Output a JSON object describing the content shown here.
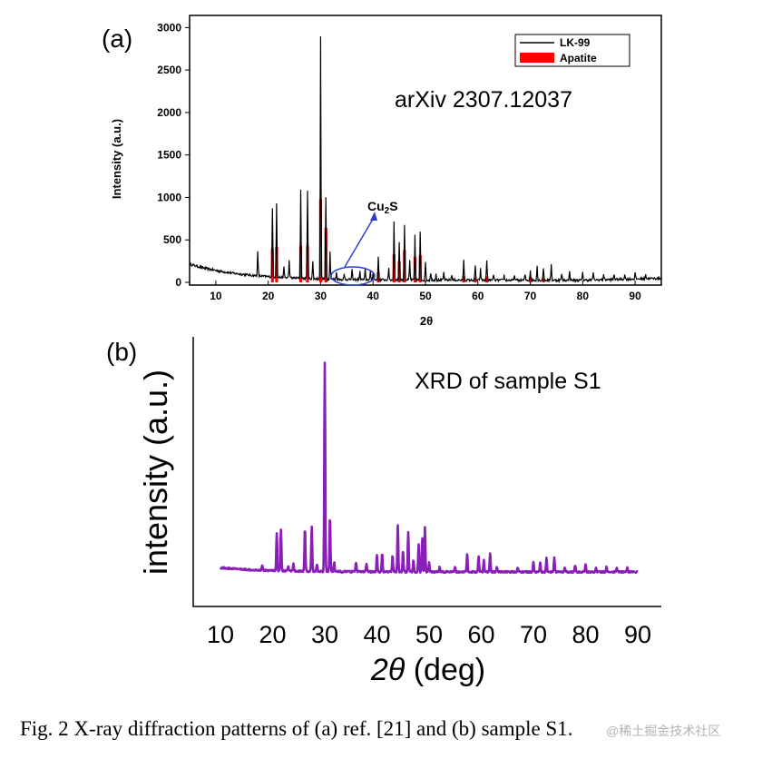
{
  "caption": "Fig. 2 X-ray diffraction patterns of (a) ref. [21] and (b) sample S1.",
  "watermark": "@稀土掘金技术社区",
  "chart_data": [
    {
      "panel": "(a)",
      "type": "line",
      "title": "arXiv 2307.12037",
      "xlabel": "2θ",
      "ylabel": "Intensity (a.u.)",
      "xlim": [
        5,
        95
      ],
      "ylim": [
        0,
        3100
      ],
      "xticks": [
        10,
        20,
        30,
        40,
        50,
        60,
        70,
        80,
        90
      ],
      "yticks": [
        0,
        500,
        1000,
        1500,
        2000,
        2500,
        3000
      ],
      "legend": {
        "position": "top-right",
        "entries": [
          "LK-99",
          "Apatite"
        ]
      },
      "annotation": {
        "text": "Cu",
        "sub": "2",
        "tail": "S",
        "region": [
          32,
          42
        ]
      },
      "series": [
        {
          "name": "LK-99",
          "color": "#000000",
          "peaks": [
            [
              18,
              280
            ],
            [
              20.8,
              820
            ],
            [
              21.6,
              880
            ],
            [
              23,
              120
            ],
            [
              24,
              200
            ],
            [
              26.2,
              1050
            ],
            [
              27.5,
              1050
            ],
            [
              28.5,
              200
            ],
            [
              30,
              2860
            ],
            [
              31,
              960
            ],
            [
              31.8,
              320
            ],
            [
              33,
              80
            ],
            [
              34.5,
              60
            ],
            [
              36,
              110
            ],
            [
              37.5,
              90
            ],
            [
              38.5,
              120
            ],
            [
              39.5,
              90
            ],
            [
              40,
              90
            ],
            [
              41,
              260
            ],
            [
              43,
              140
            ],
            [
              44,
              700
            ],
            [
              45,
              450
            ],
            [
              46,
              650
            ],
            [
              47,
              230
            ],
            [
              48,
              520
            ],
            [
              49,
              560
            ],
            [
              50,
              200
            ],
            [
              51,
              90
            ],
            [
              52,
              80
            ],
            [
              53.5,
              90
            ],
            [
              55,
              70
            ],
            [
              57.3,
              230
            ],
            [
              59.5,
              170
            ],
            [
              60.5,
              130
            ],
            [
              61.7,
              240
            ],
            [
              63,
              70
            ],
            [
              65,
              60
            ],
            [
              67,
              60
            ],
            [
              69,
              70
            ],
            [
              70,
              120
            ],
            [
              71.3,
              170
            ],
            [
              72.5,
              150
            ],
            [
              74,
              200
            ],
            [
              76,
              80
            ],
            [
              77.5,
              110
            ],
            [
              80,
              100
            ],
            [
              82,
              90
            ],
            [
              84,
              70
            ],
            [
              86,
              60
            ],
            [
              88,
              60
            ],
            [
              90,
              70
            ],
            [
              92,
              60
            ]
          ]
        },
        {
          "name": "Apatite",
          "color": "#ff0000",
          "peaks": [
            [
              20.8,
              400
            ],
            [
              21.6,
              420
            ],
            [
              26.2,
              430
            ],
            [
              27.5,
              430
            ],
            [
              30,
              980
            ],
            [
              31,
              640
            ],
            [
              41,
              120
            ],
            [
              44,
              330
            ],
            [
              45,
              250
            ],
            [
              46,
              380
            ],
            [
              48,
              300
            ],
            [
              49,
              320
            ],
            [
              57.3,
              80
            ],
            [
              59.5,
              60
            ],
            [
              61.7,
              70
            ],
            [
              70,
              60
            ],
            [
              72.5,
              50
            ]
          ]
        }
      ]
    },
    {
      "panel": "(b)",
      "type": "line",
      "title": "XRD of sample S1",
      "xlabel_italic": "2θ",
      "xlabel_rest": " (deg)",
      "ylabel": "intensity (a.u.)",
      "xlim": [
        5,
        95
      ],
      "ylim": [
        -5,
        100
      ],
      "xticks": [
        10,
        20,
        30,
        40,
        50,
        60,
        70,
        80,
        90
      ],
      "series": [
        {
          "name": "S1",
          "color": "#8a1fb8",
          "peaks": [
            [
              18,
              2
            ],
            [
              20.8,
              16
            ],
            [
              21.6,
              18
            ],
            [
              23,
              2
            ],
            [
              24,
              3
            ],
            [
              26.2,
              19
            ],
            [
              27.5,
              20
            ],
            [
              28.5,
              3
            ],
            [
              30,
              90
            ],
            [
              31,
              24
            ],
            [
              31.8,
              4
            ],
            [
              36,
              4
            ],
            [
              38,
              3
            ],
            [
              40,
              7
            ],
            [
              41,
              8
            ],
            [
              43,
              7
            ],
            [
              44,
              20
            ],
            [
              45,
              9
            ],
            [
              46,
              17
            ],
            [
              47,
              5
            ],
            [
              48,
              12
            ],
            [
              48.7,
              15
            ],
            [
              49.2,
              19
            ],
            [
              50,
              4
            ],
            [
              52,
              2
            ],
            [
              55,
              2
            ],
            [
              57.3,
              8
            ],
            [
              59.5,
              7
            ],
            [
              60.5,
              5
            ],
            [
              61.7,
              8
            ],
            [
              63,
              2
            ],
            [
              67,
              2
            ],
            [
              70,
              4
            ],
            [
              71.3,
              4
            ],
            [
              72.5,
              6
            ],
            [
              74,
              6
            ],
            [
              76,
              2
            ],
            [
              78,
              3
            ],
            [
              80,
              3
            ],
            [
              82,
              2
            ],
            [
              84,
              2
            ],
            [
              86,
              2
            ],
            [
              88,
              2
            ]
          ]
        }
      ]
    }
  ]
}
